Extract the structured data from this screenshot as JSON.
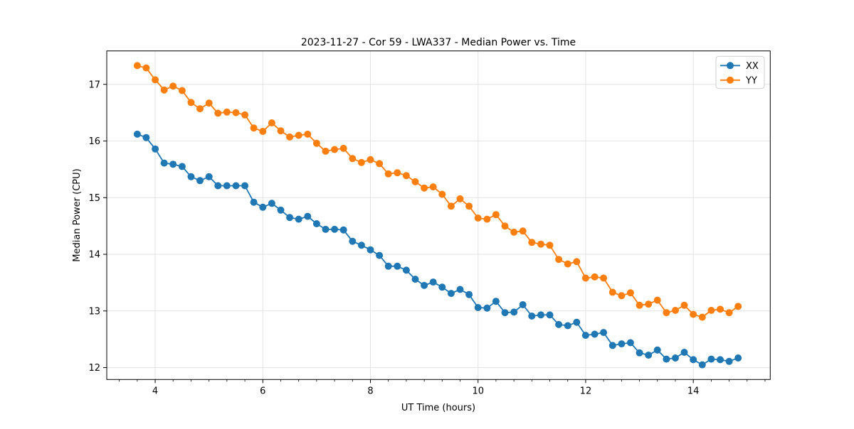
{
  "chart_data": {
    "type": "line",
    "title": "2023-11-27 - Cor 59 - LWA337 - Median Power vs. Time",
    "xlabel": "UT Time (hours)",
    "ylabel": "Median Power (CPU)",
    "xlim": [
      3.1,
      15.43
    ],
    "ylim": [
      11.79,
      17.59
    ],
    "xticks": [
      4,
      6,
      8,
      10,
      12,
      14
    ],
    "yticks": [
      12,
      13,
      14,
      15,
      16,
      17
    ],
    "x_minor_divisions_per_hour": 3,
    "grid": true,
    "grid_color": "#e3e3e3",
    "legend_position": "upper right",
    "x": [
      3.667,
      3.833,
      4.0,
      4.167,
      4.333,
      4.5,
      4.667,
      4.833,
      5.0,
      5.167,
      5.333,
      5.5,
      5.667,
      5.833,
      6.0,
      6.167,
      6.333,
      6.5,
      6.667,
      6.833,
      7.0,
      7.167,
      7.333,
      7.5,
      7.667,
      7.833,
      8.0,
      8.167,
      8.333,
      8.5,
      8.667,
      8.833,
      9.0,
      9.167,
      9.333,
      9.5,
      9.667,
      9.833,
      10.0,
      10.167,
      10.333,
      10.5,
      10.667,
      10.833,
      11.0,
      11.167,
      11.333,
      11.5,
      11.667,
      11.833,
      12.0,
      12.167,
      12.333,
      12.5,
      12.667,
      12.833,
      13.0,
      13.167,
      13.333,
      13.5,
      13.667,
      13.833,
      14.0,
      14.167,
      14.333,
      14.5,
      14.667,
      14.833
    ],
    "series": [
      {
        "name": "XX",
        "color": "#1f77b4",
        "values": [
          16.12,
          16.06,
          15.86,
          15.61,
          15.59,
          15.55,
          15.37,
          15.3,
          15.37,
          15.21,
          15.21,
          15.21,
          15.21,
          14.92,
          14.83,
          14.9,
          14.78,
          14.65,
          14.62,
          14.67,
          14.54,
          14.44,
          14.44,
          14.43,
          14.23,
          14.16,
          14.08,
          13.98,
          13.79,
          13.79,
          13.72,
          13.56,
          13.45,
          13.51,
          13.42,
          13.31,
          13.38,
          13.29,
          13.06,
          13.05,
          13.17,
          12.97,
          12.98,
          13.11,
          12.91,
          12.93,
          12.93,
          12.76,
          12.74,
          12.8,
          12.57,
          12.59,
          12.62,
          12.39,
          12.42,
          12.44,
          12.26,
          12.22,
          12.31,
          12.15,
          12.17,
          12.27,
          12.14,
          12.05,
          12.15,
          12.14,
          12.11,
          12.17
        ]
      },
      {
        "name": "YY",
        "color": "#ff7f0e",
        "values": [
          17.33,
          17.29,
          17.08,
          16.9,
          16.97,
          16.89,
          16.68,
          16.57,
          16.67,
          16.49,
          16.51,
          16.5,
          16.46,
          16.23,
          16.17,
          16.32,
          16.18,
          16.07,
          16.1,
          16.12,
          15.96,
          15.82,
          15.85,
          15.87,
          15.69,
          15.62,
          15.67,
          15.6,
          15.42,
          15.44,
          15.39,
          15.28,
          15.17,
          15.19,
          15.06,
          14.85,
          14.98,
          14.85,
          14.64,
          14.62,
          14.7,
          14.5,
          14.39,
          14.41,
          14.21,
          14.18,
          14.16,
          13.91,
          13.83,
          13.87,
          13.58,
          13.6,
          13.58,
          13.33,
          13.27,
          13.32,
          13.1,
          13.12,
          13.19,
          12.97,
          13.01,
          13.1,
          12.94,
          12.89,
          13.01,
          13.03,
          12.97,
          13.08
        ]
      }
    ]
  }
}
